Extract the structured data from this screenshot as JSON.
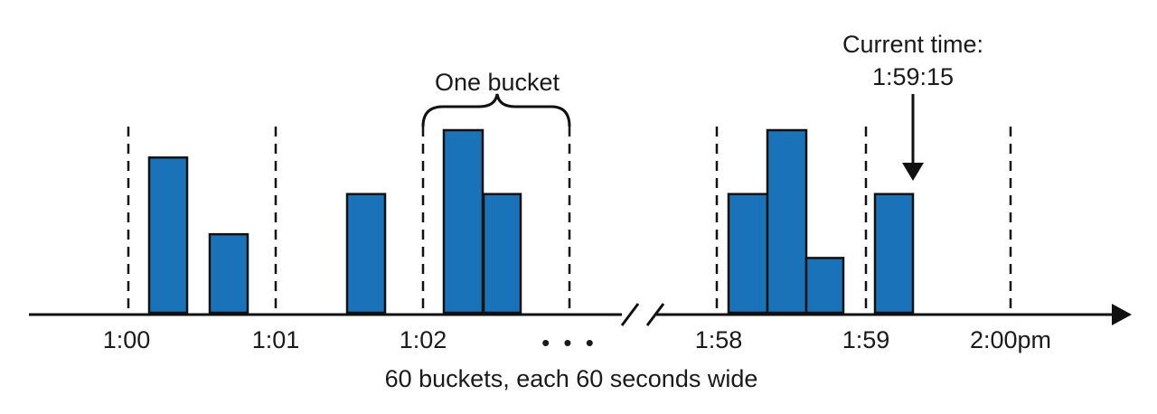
{
  "chart_data": {
    "type": "bar",
    "time_labels": [
      "1:00",
      "1:01",
      "1:02",
      "1:58",
      "1:59",
      "2:00pm"
    ],
    "ellipsis": "• • •",
    "caption": "60 buckets, each 60 seconds wide",
    "bucket_annotation": "One bucket",
    "current_time_annotation": [
      "Current time:",
      "1:59:15"
    ],
    "bar_color": "#1a73b8",
    "bars": [
      {
        "bucket": "1:00",
        "value": 0.85
      },
      {
        "bucket": "1:00",
        "value": 0.43
      },
      {
        "bucket": "1:01",
        "value": 0.65
      },
      {
        "bucket": "1:02",
        "value": 1.0
      },
      {
        "bucket": "1:02",
        "value": 0.65
      },
      {
        "bucket": "1:58",
        "value": 0.65
      },
      {
        "bucket": "1:58",
        "value": 1.0
      },
      {
        "bucket": "1:58",
        "value": 0.3
      },
      {
        "bucket": "1:59",
        "value": 0.65
      }
    ]
  }
}
